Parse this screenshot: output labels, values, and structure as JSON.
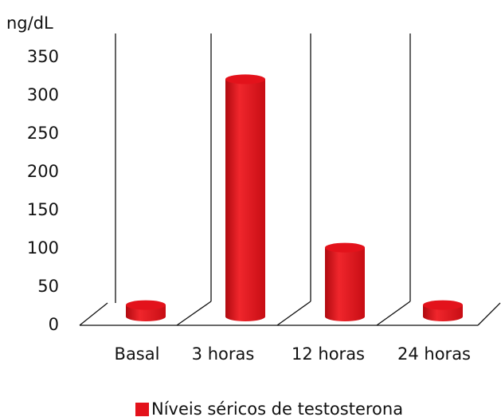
{
  "chart_data": {
    "type": "bar",
    "y_label": "ng/dL",
    "categories": [
      "Basal",
      "3 horas",
      "12 horas",
      "24 horas"
    ],
    "series": [
      {
        "name": "Níveis séricos de testosterona",
        "color": "#e3121b",
        "values": [
          15,
          310,
          90,
          15
        ]
      }
    ],
    "ylim": [
      0,
      350
    ],
    "yticks": [
      0,
      50,
      100,
      150,
      200,
      250,
      300,
      350
    ],
    "grid": false,
    "legend": "bottom"
  }
}
